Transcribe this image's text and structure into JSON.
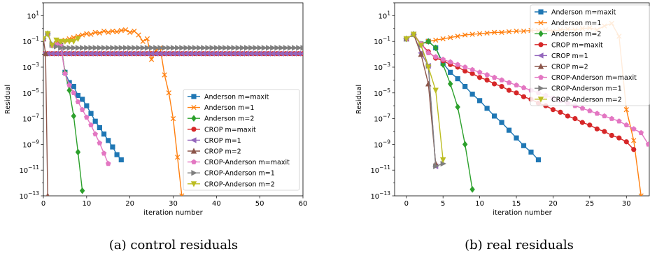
{
  "colors": {
    "blue": "#1f77b4",
    "orange": "#ff7f0e",
    "green": "#2ca02c",
    "red": "#d62728",
    "purple": "#9467bd",
    "brown": "#8c564b",
    "pink": "#e377c2",
    "gray": "#7f7f7f",
    "olive": "#bcbd22"
  },
  "legend_entries": [
    {
      "name": "Anderson m=maxit",
      "color": "#1f77b4",
      "marker": "square"
    },
    {
      "name": "Anderson m=1",
      "color": "#ff7f0e",
      "marker": "x"
    },
    {
      "name": "Anderson m=2",
      "color": "#2ca02c",
      "marker": "diamond"
    },
    {
      "name": "CROP m=maxit",
      "color": "#d62728",
      "marker": "circle"
    },
    {
      "name": "CROP m=1",
      "color": "#9467bd",
      "marker": "triangle-left"
    },
    {
      "name": "CROP m=2",
      "color": "#8c564b",
      "marker": "triangle-up"
    },
    {
      "name": "CROP-Anderson m=maxit",
      "color": "#e377c2",
      "marker": "pentagon"
    },
    {
      "name": "CROP-Anderson m=1",
      "color": "#7f7f7f",
      "marker": "triangle-right"
    },
    {
      "name": "CROP-Anderson m=2",
      "color": "#bcbd22",
      "marker": "triangle-down"
    }
  ],
  "chart_data": [
    {
      "type": "line",
      "caption": "(a) control residuals",
      "xlabel": "iteration number",
      "ylabel": "Residual",
      "yscale": "log",
      "xlim": [
        0,
        60
      ],
      "ylim_exp": [
        -13,
        2
      ],
      "xticks": [
        0,
        10,
        20,
        30,
        40,
        50,
        60
      ],
      "yticks": [
        "10^{1}",
        "10^{-1}",
        "10^{-3}",
        "10^{-5}",
        "10^{-7}",
        "10^{-9}",
        "10^{-11}",
        "10^{-13}"
      ],
      "legend_position": "lower right",
      "series": [
        {
          "name": "Anderson m=maxit",
          "x": [
            0,
            1,
            2,
            3,
            4,
            5,
            6,
            7,
            8,
            9,
            10,
            11,
            12,
            13,
            14,
            15,
            16,
            17,
            18
          ],
          "log10y": [
            -0.8,
            -0.4,
            -1.3,
            -1.2,
            -1.3,
            -3.4,
            -4.2,
            -4.5,
            -5.2,
            -5.5,
            -6.0,
            -6.6,
            -7.2,
            -7.7,
            -8.2,
            -8.7,
            -9.2,
            -9.8,
            -10.2
          ]
        },
        {
          "name": "Anderson m=1",
          "x": [
            0,
            1,
            2,
            3,
            4,
            5,
            6,
            7,
            8,
            9,
            10,
            11,
            12,
            13,
            14,
            15,
            16,
            17,
            18,
            19,
            20,
            21,
            22,
            23,
            24,
            25,
            26,
            27,
            28,
            29,
            30,
            31,
            32
          ],
          "log10y": [
            -0.8,
            -0.4,
            -1.3,
            -0.9,
            -1.0,
            -0.9,
            -0.8,
            -0.7,
            -0.6,
            -0.5,
            -0.4,
            -0.45,
            -0.3,
            -0.35,
            -0.2,
            -0.3,
            -0.2,
            -0.25,
            -0.15,
            -0.1,
            -0.3,
            -0.2,
            -0.5,
            -1.0,
            -0.8,
            -2.4,
            -1.7,
            -1.5,
            -3.6,
            -5.0,
            -7.0,
            -10.0,
            -13.0
          ]
        },
        {
          "name": "Anderson m=2",
          "x": [
            0,
            1,
            2,
            3,
            4,
            5,
            6,
            7,
            8,
            9
          ],
          "log10y": [
            -0.8,
            -0.4,
            -1.3,
            -1.2,
            -1.2,
            -3.4,
            -4.8,
            -6.8,
            -9.6,
            -12.6
          ]
        },
        {
          "name": "CROP m=maxit",
          "x": [
            0,
            1,
            2,
            3,
            4,
            5,
            6,
            7,
            8,
            9,
            10,
            11,
            12,
            13,
            14,
            15,
            16,
            17,
            18,
            19,
            20,
            21,
            22,
            23,
            24,
            25,
            26,
            27,
            28,
            29,
            30,
            31,
            32,
            33,
            34,
            35,
            36,
            37,
            38,
            39,
            40,
            41,
            42,
            43,
            44,
            45,
            46,
            47,
            48,
            49,
            50,
            51,
            52,
            53,
            54,
            55,
            56,
            57,
            58,
            59,
            60
          ],
          "log10y": [
            -1.95,
            -1.95,
            -1.95,
            -1.95,
            -1.95,
            -1.95,
            -1.95,
            -1.95,
            -1.95,
            -1.95,
            -1.95,
            -1.95,
            -1.95,
            -1.95,
            -1.95,
            -1.95,
            -1.95,
            -1.95,
            -1.95,
            -1.95,
            -1.95,
            -1.95,
            -1.95,
            -1.95,
            -1.95,
            -1.95,
            -1.95,
            -1.95,
            -1.95,
            -1.95,
            -1.95,
            -1.95,
            -1.95,
            -1.95,
            -1.95,
            -1.95,
            -1.95,
            -1.95,
            -1.95,
            -1.95,
            -1.95,
            -1.95,
            -1.95,
            -1.95,
            -1.95,
            -1.95,
            -1.95,
            -1.95,
            -1.95,
            -1.95,
            -1.95,
            -1.95,
            -1.95,
            -1.95,
            -1.95,
            -1.95,
            -1.95,
            -1.95,
            -1.95,
            -1.95,
            -1.95
          ]
        },
        {
          "name": "CROP m=1",
          "x": [
            0,
            1,
            2,
            3,
            4,
            5,
            6,
            7,
            8,
            9,
            10,
            11,
            12,
            13,
            14,
            15,
            16,
            17,
            18,
            19,
            20,
            21,
            22,
            23,
            24,
            25,
            26,
            27,
            28,
            29,
            30,
            31,
            32,
            33,
            34,
            35,
            36,
            37,
            38,
            39,
            40,
            41,
            42,
            43,
            44,
            45,
            46,
            47,
            48,
            49,
            50,
            51,
            52,
            53,
            54,
            55,
            56,
            57,
            58,
            59,
            60
          ],
          "log10y": [
            -1.95,
            -1.95,
            -1.95,
            -1.95,
            -1.95,
            -1.95,
            -1.95,
            -1.95,
            -1.95,
            -1.95,
            -1.95,
            -1.95,
            -1.95,
            -1.95,
            -1.95,
            -1.95,
            -1.95,
            -1.95,
            -1.95,
            -1.95,
            -1.95,
            -1.95,
            -1.95,
            -1.95,
            -1.95,
            -1.95,
            -1.95,
            -1.95,
            -1.95,
            -1.95,
            -1.95,
            -1.95,
            -1.95,
            -1.95,
            -1.95,
            -1.95,
            -1.95,
            -1.95,
            -1.95,
            -1.95,
            -1.95,
            -1.95,
            -1.95,
            -1.95,
            -1.95,
            -1.95,
            -1.95,
            -1.95,
            -1.95,
            -1.95,
            -1.95,
            -1.95,
            -1.95,
            -1.95,
            -1.95,
            -1.95,
            -1.95,
            -1.95,
            -1.95,
            -1.95,
            -1.95
          ]
        },
        {
          "name": "CROP m=2",
          "x": [
            0,
            0.5,
            1
          ],
          "log10y": [
            -0.8,
            -1.95,
            -13.0
          ]
        },
        {
          "name": "CROP-Anderson m=maxit",
          "x": [
            0,
            1,
            2,
            3,
            4,
            5,
            6,
            7,
            8,
            9,
            10,
            11,
            12,
            13,
            14,
            15
          ],
          "log10y": [
            -0.8,
            -0.4,
            -1.3,
            -1.2,
            -1.3,
            -3.5,
            -4.4,
            -5.0,
            -5.7,
            -6.3,
            -6.9,
            -7.5,
            -8.2,
            -8.9,
            -9.7,
            -10.5
          ]
        },
        {
          "name": "CROP-Anderson m=1",
          "x": [
            0,
            1,
            2,
            3,
            4,
            5,
            6,
            7,
            8,
            9,
            10,
            11,
            12,
            13,
            14,
            15,
            16,
            17,
            18,
            19,
            20,
            21,
            22,
            23,
            24,
            25,
            26,
            27,
            28,
            29,
            30,
            31,
            32,
            33,
            34,
            35,
            36,
            37,
            38,
            39,
            40,
            41,
            42,
            43,
            44,
            45,
            46,
            47,
            48,
            49,
            50,
            51,
            52,
            53,
            54,
            55,
            56,
            57,
            58,
            59,
            60
          ],
          "log10y": [
            -0.8,
            -0.4,
            -1.2,
            -1.4,
            -1.5,
            -1.5,
            -1.5,
            -1.5,
            -1.5,
            -1.5,
            -1.5,
            -1.5,
            -1.5,
            -1.5,
            -1.5,
            -1.5,
            -1.5,
            -1.5,
            -1.5,
            -1.5,
            -1.5,
            -1.5,
            -1.5,
            -1.5,
            -1.5,
            -1.5,
            -1.5,
            -1.5,
            -1.5,
            -1.5,
            -1.5,
            -1.5,
            -1.5,
            -1.5,
            -1.5,
            -1.5,
            -1.5,
            -1.5,
            -1.5,
            -1.5,
            -1.5,
            -1.5,
            -1.5,
            -1.5,
            -1.5,
            -1.5,
            -1.5,
            -1.5,
            -1.5,
            -1.5,
            -1.5,
            -1.5,
            -1.5,
            -1.5,
            -1.5,
            -1.5,
            -1.5,
            -1.5,
            -1.5,
            -1.5,
            -1.5
          ]
        },
        {
          "name": "CROP-Anderson m=2",
          "x": [
            0,
            1,
            2,
            3,
            4,
            5,
            6,
            7,
            8
          ],
          "log10y": [
            -0.8,
            -0.4,
            -1.3,
            -0.9,
            -1.0,
            -1.0,
            -1.0,
            -1.0,
            -0.8
          ]
        }
      ]
    },
    {
      "type": "line",
      "caption": "(b) real residuals",
      "xlabel": "iteration number",
      "ylabel": "Residual",
      "yscale": "log",
      "xlim": [
        -1.6,
        33.6
      ],
      "ylim_exp": [
        -13,
        2
      ],
      "xticks": [
        0,
        5,
        10,
        15,
        20,
        25,
        30
      ],
      "yticks": [
        "10^{1}",
        "10^{-1}",
        "10^{-3}",
        "10^{-5}",
        "10^{-7}",
        "10^{-9}",
        "10^{-11}",
        "10^{-13}"
      ],
      "legend_position": "upper right",
      "series": [
        {
          "name": "Anderson m=maxit",
          "x": [
            0,
            1,
            2,
            3,
            4,
            5,
            6,
            7,
            8,
            9,
            10,
            11,
            12,
            13,
            14,
            15,
            16,
            17,
            18
          ],
          "log10y": [
            -0.8,
            -0.45,
            -1.2,
            -1.0,
            -1.5,
            -2.7,
            -3.4,
            -3.9,
            -4.5,
            -5.1,
            -5.6,
            -6.2,
            -6.8,
            -7.3,
            -7.9,
            -8.5,
            -9.1,
            -9.6,
            -10.2
          ]
        },
        {
          "name": "Anderson m=1",
          "x": [
            0,
            1,
            2,
            3,
            4,
            5,
            6,
            7,
            8,
            9,
            10,
            11,
            12,
            13,
            14,
            15,
            16,
            17,
            18,
            19,
            20,
            21,
            22,
            23,
            24,
            25,
            26,
            27,
            28,
            29,
            30,
            31,
            32
          ],
          "log10y": [
            -0.8,
            -0.45,
            -1.2,
            -1.0,
            -0.9,
            -0.8,
            -0.7,
            -0.6,
            -0.5,
            -0.45,
            -0.4,
            -0.35,
            -0.3,
            -0.3,
            -0.25,
            -0.2,
            -0.2,
            -0.15,
            -0.15,
            -0.1,
            -0.2,
            -0.1,
            -0.05,
            -0.1,
            0.0,
            0.05,
            -0.1,
            0.2,
            0.4,
            -0.6,
            -6.3,
            -8.7,
            -13.0
          ]
        },
        {
          "name": "Anderson m=2",
          "x": [
            0,
            1,
            2,
            3,
            4,
            5,
            6,
            7,
            8,
            9
          ],
          "log10y": [
            -0.8,
            -0.45,
            -1.2,
            -1.0,
            -1.5,
            -2.8,
            -4.3,
            -6.1,
            -9.0,
            -12.5
          ]
        },
        {
          "name": "CROP m=maxit",
          "x": [
            0,
            1,
            2,
            3,
            4,
            5,
            6,
            7,
            8,
            9,
            10,
            11,
            12,
            13,
            14,
            15,
            16,
            17,
            18,
            19,
            20,
            21,
            22,
            23,
            24,
            25,
            26,
            27,
            28,
            29,
            30,
            31
          ],
          "log10y": [
            -0.8,
            -0.45,
            -1.2,
            -1.8,
            -2.3,
            -2.5,
            -2.8,
            -3.0,
            -3.3,
            -3.5,
            -3.8,
            -4.0,
            -4.3,
            -4.5,
            -4.8,
            -5.0,
            -5.3,
            -5.5,
            -5.8,
            -6.0,
            -6.3,
            -6.5,
            -6.8,
            -7.0,
            -7.3,
            -7.5,
            -7.8,
            -8.0,
            -8.3,
            -8.5,
            -8.8,
            -9.4
          ]
        },
        {
          "name": "CROP m=1",
          "x": [
            0,
            1,
            2,
            3,
            4
          ],
          "log10y": [
            -0.8,
            -0.45,
            -1.9,
            -2.9,
            -10.7
          ]
        },
        {
          "name": "CROP m=2",
          "x": [
            0,
            1,
            2,
            3,
            4
          ],
          "log10y": [
            -0.8,
            -0.45,
            -2.0,
            -4.3,
            -10.5
          ]
        },
        {
          "name": "CROP-Anderson m=maxit",
          "x": [
            0,
            1,
            2,
            3,
            4,
            5,
            6,
            7,
            8,
            9,
            10,
            11,
            12,
            13,
            14,
            15,
            16,
            17,
            18,
            19,
            20,
            21,
            22,
            23,
            24,
            25,
            26,
            27,
            28,
            29,
            30,
            31,
            32,
            33
          ],
          "log10y": [
            -0.8,
            -0.45,
            -1.2,
            -1.9,
            -2.2,
            -2.4,
            -2.6,
            -2.8,
            -3.0,
            -3.2,
            -3.4,
            -3.6,
            -3.8,
            -4.0,
            -4.2,
            -4.4,
            -4.6,
            -4.8,
            -5.0,
            -5.2,
            -5.4,
            -5.6,
            -5.8,
            -6.0,
            -6.2,
            -6.4,
            -6.6,
            -6.8,
            -7.0,
            -7.2,
            -7.5,
            -7.8,
            -8.1,
            -9.0
          ]
        },
        {
          "name": "CROP-Anderson m=1",
          "x": [
            0,
            1,
            2,
            3,
            4,
            5
          ],
          "log10y": [
            -0.8,
            -0.45,
            -1.3,
            -2.9,
            -10.7,
            -10.5
          ]
        },
        {
          "name": "CROP-Anderson m=2",
          "x": [
            0,
            1,
            2,
            3,
            4,
            5
          ],
          "log10y": [
            -0.8,
            -0.45,
            -1.3,
            -3.0,
            -4.8,
            -10.2
          ]
        }
      ]
    }
  ]
}
